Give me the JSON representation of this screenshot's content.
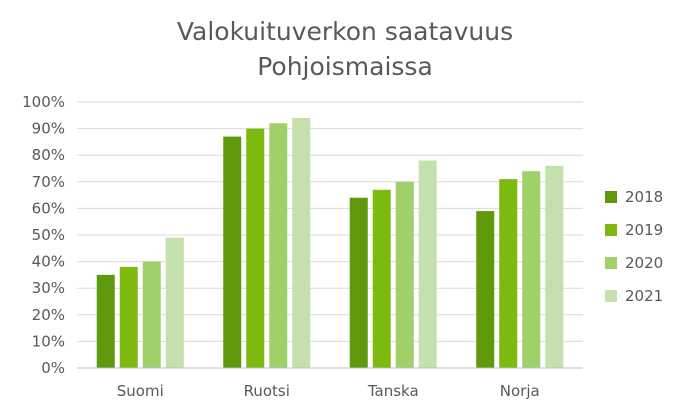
{
  "chart_data": {
    "type": "bar",
    "title_lines": [
      "Valokuituverkon saatavuus",
      "Pohjoismaissa"
    ],
    "categories": [
      "Suomi",
      "Ruotsi",
      "Tanska",
      "Norja"
    ],
    "series": [
      {
        "name": "2018",
        "color": "#5f9a0c",
        "values": [
          35,
          87,
          64,
          59
        ]
      },
      {
        "name": "2019",
        "color": "#7cba0f",
        "values": [
          38,
          90,
          67,
          71
        ]
      },
      {
        "name": "2020",
        "color": "#9fd069",
        "values": [
          40,
          92,
          70,
          74
        ]
      },
      {
        "name": "2021",
        "color": "#c4e0ad",
        "values": [
          49,
          94,
          78,
          76
        ]
      }
    ],
    "ylim": [
      0,
      100
    ],
    "yticks": [
      "0%",
      "10%",
      "20%",
      "30%",
      "40%",
      "50%",
      "60%",
      "70%",
      "80%",
      "90%",
      "100%"
    ],
    "gridlines": true,
    "legend_position": "right"
  }
}
